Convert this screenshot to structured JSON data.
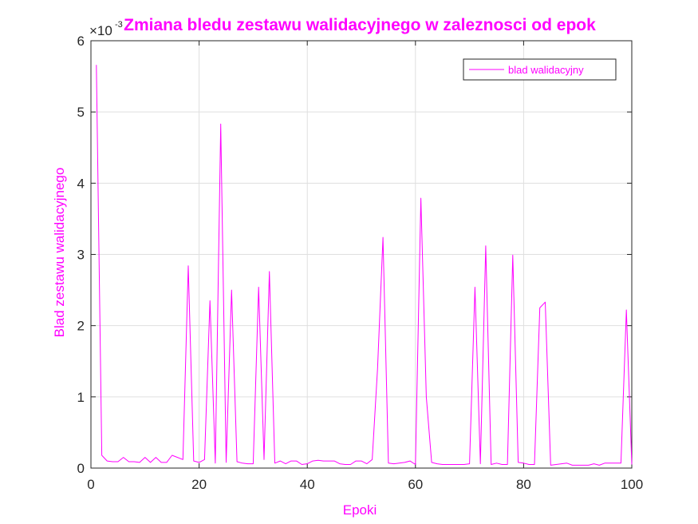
{
  "chart_data": {
    "type": "line",
    "title": "Zmiana bledu zestawu walidacyjnego w zaleznosci od epok",
    "xlabel": "Epoki",
    "ylabel": "Blad zestawu walidacyjnego",
    "y_exponent_label": "×10",
    "y_exponent": "-3",
    "xlim": [
      0,
      100
    ],
    "ylim": [
      0,
      6
    ],
    "xticks": [
      0,
      20,
      40,
      60,
      80,
      100
    ],
    "yticks": [
      0,
      1,
      2,
      3,
      4,
      5,
      6
    ],
    "grid": true,
    "legend_position": "top-right",
    "line_color": "#ff00ff",
    "series": [
      {
        "name": "blad walidacyjny",
        "x": [
          1,
          2,
          3,
          4,
          5,
          6,
          7,
          8,
          9,
          10,
          11,
          12,
          13,
          14,
          15,
          16,
          17,
          18,
          19,
          20,
          21,
          22,
          23,
          24,
          25,
          26,
          27,
          28,
          29,
          30,
          31,
          32,
          33,
          34,
          35,
          36,
          37,
          38,
          39,
          40,
          41,
          42,
          43,
          44,
          45,
          46,
          47,
          48,
          49,
          50,
          51,
          52,
          53,
          54,
          55,
          56,
          57,
          58,
          59,
          60,
          61,
          62,
          63,
          64,
          65,
          66,
          67,
          68,
          69,
          70,
          71,
          72,
          73,
          74,
          75,
          76,
          77,
          78,
          79,
          80,
          81,
          82,
          83,
          84,
          85,
          86,
          87,
          88,
          89,
          90,
          91,
          92,
          93,
          94,
          95,
          96,
          97,
          98,
          99,
          100
        ],
        "values": [
          5.66,
          0.18,
          0.1,
          0.09,
          0.09,
          0.15,
          0.09,
          0.09,
          0.08,
          0.15,
          0.08,
          0.15,
          0.08,
          0.08,
          0.18,
          0.15,
          0.12,
          2.84,
          0.1,
          0.08,
          0.12,
          2.35,
          0.07,
          4.83,
          0.08,
          2.5,
          0.09,
          0.07,
          0.06,
          0.06,
          2.54,
          0.12,
          2.76,
          0.07,
          0.1,
          0.06,
          0.1,
          0.1,
          0.05,
          0.06,
          0.1,
          0.11,
          0.1,
          0.1,
          0.1,
          0.06,
          0.05,
          0.05,
          0.1,
          0.1,
          0.06,
          0.12,
          1.4,
          3.24,
          0.07,
          0.06,
          0.07,
          0.08,
          0.1,
          0.05,
          3.79,
          1.0,
          0.08,
          0.06,
          0.05,
          0.05,
          0.05,
          0.05,
          0.05,
          0.06,
          2.54,
          0.06,
          3.12,
          0.05,
          0.07,
          0.05,
          0.05,
          2.99,
          0.08,
          0.07,
          0.05,
          0.05,
          2.25,
          2.33,
          0.04,
          0.05,
          0.06,
          0.07,
          0.04,
          0.04,
          0.04,
          0.04,
          0.06,
          0.04,
          0.07,
          0.07,
          0.07,
          0.07,
          2.22,
          0.05
        ]
      }
    ]
  }
}
